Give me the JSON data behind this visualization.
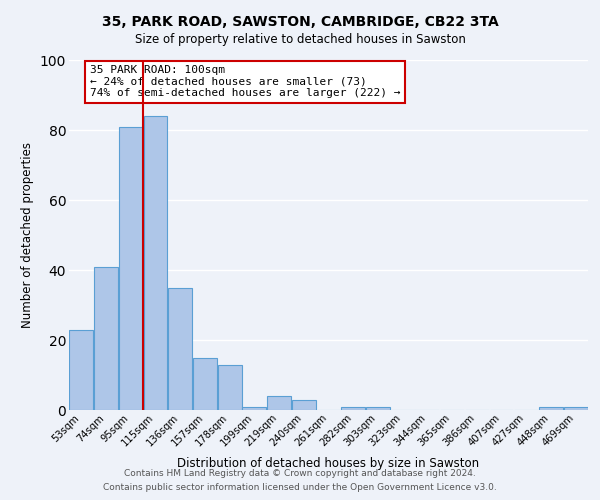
{
  "title1": "35, PARK ROAD, SAWSTON, CAMBRIDGE, CB22 3TA",
  "title2": "Size of property relative to detached houses in Sawston",
  "xlabel": "Distribution of detached houses by size in Sawston",
  "ylabel": "Number of detached properties",
  "bin_labels": [
    "53sqm",
    "74sqm",
    "95sqm",
    "115sqm",
    "136sqm",
    "157sqm",
    "178sqm",
    "199sqm",
    "219sqm",
    "240sqm",
    "261sqm",
    "282sqm",
    "303sqm",
    "323sqm",
    "344sqm",
    "365sqm",
    "386sqm",
    "407sqm",
    "427sqm",
    "448sqm",
    "469sqm"
  ],
  "bar_values": [
    23,
    41,
    81,
    84,
    35,
    15,
    13,
    1,
    4,
    3,
    0,
    1,
    1,
    0,
    0,
    0,
    0,
    0,
    0,
    1,
    1
  ],
  "bar_color": "#aec6e8",
  "bar_edge_color": "#5a9fd4",
  "vline_color": "#cc0000",
  "annotation_title": "35 PARK ROAD: 100sqm",
  "annotation_line1": "← 24% of detached houses are smaller (73)",
  "annotation_line2": "74% of semi-detached houses are larger (222) →",
  "annotation_box_color": "#ffffff",
  "annotation_box_edge_color": "#cc0000",
  "ylim": [
    0,
    100
  ],
  "yticks": [
    0,
    20,
    40,
    60,
    80,
    100
  ],
  "footer1": "Contains HM Land Registry data © Crown copyright and database right 2024.",
  "footer2": "Contains public sector information licensed under the Open Government Licence v3.0.",
  "bg_color": "#eef2f9",
  "grid_color": "#ffffff"
}
